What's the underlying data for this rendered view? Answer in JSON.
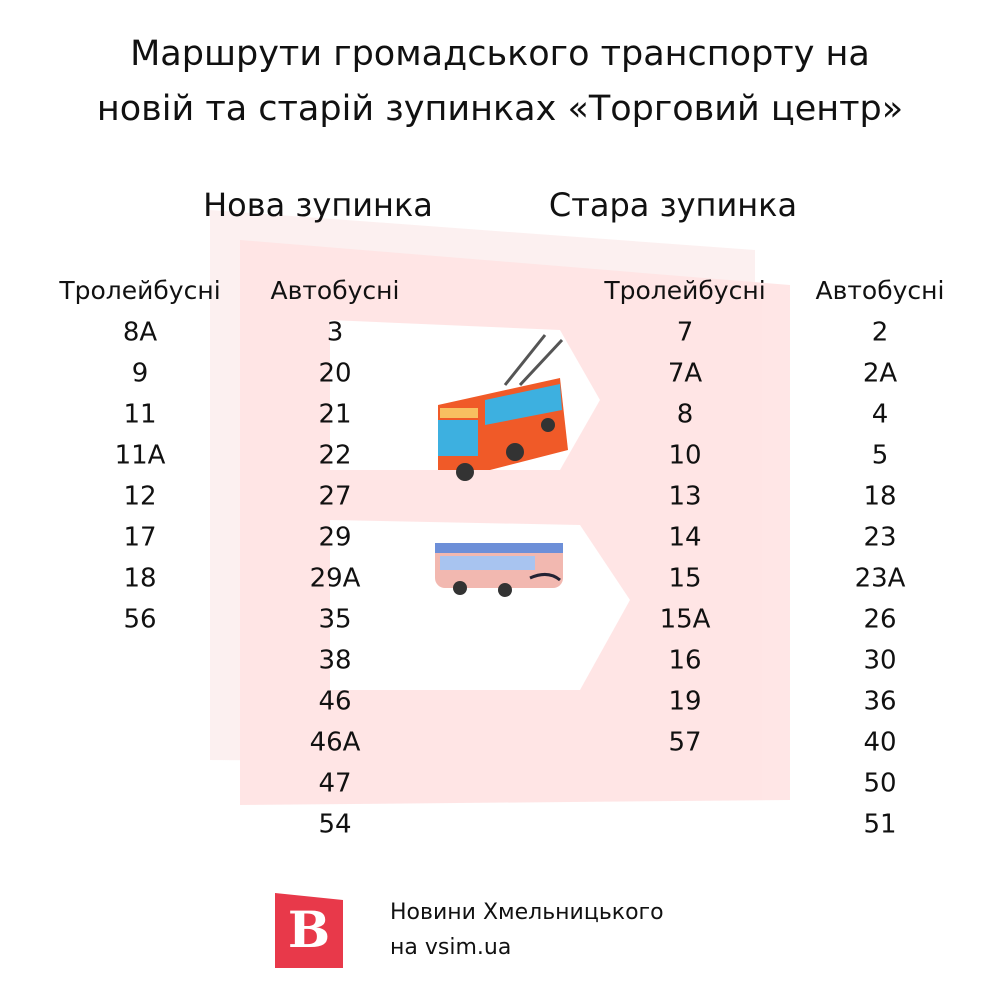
{
  "title_lines": [
    "Маршрути громадського транспорту на",
    "новій та старій зупинках «Торговий центр»"
  ],
  "stops": [
    {
      "name": "Нова зупинка",
      "columns": [
        {
          "header": "Тролейбусні",
          "routes": [
            "8А",
            "9",
            "11",
            "11А",
            "12",
            "17",
            "18",
            "56"
          ]
        },
        {
          "header": "Автобусні",
          "routes": [
            "3",
            "20",
            "21",
            "22",
            "27",
            "29",
            "29А",
            "35",
            "38",
            "46",
            "46А",
            "47",
            "54"
          ]
        }
      ]
    },
    {
      "name": "Стара зупинка",
      "columns": [
        {
          "header": "Тролейбусні",
          "routes": [
            "7",
            "7А",
            "8",
            "10",
            "13",
            "14",
            "15",
            "15А",
            "16",
            "19",
            "57"
          ]
        },
        {
          "header": "Автобусні",
          "routes": [
            "2",
            "2А",
            "4",
            "5",
            "18",
            "23",
            "23А",
            "26",
            "30",
            "36",
            "40",
            "50",
            "51"
          ]
        }
      ]
    }
  ],
  "footer": {
    "lines": [
      "Новини Хмельницького",
      "на vsim.ua"
    ],
    "logo": "В"
  }
}
